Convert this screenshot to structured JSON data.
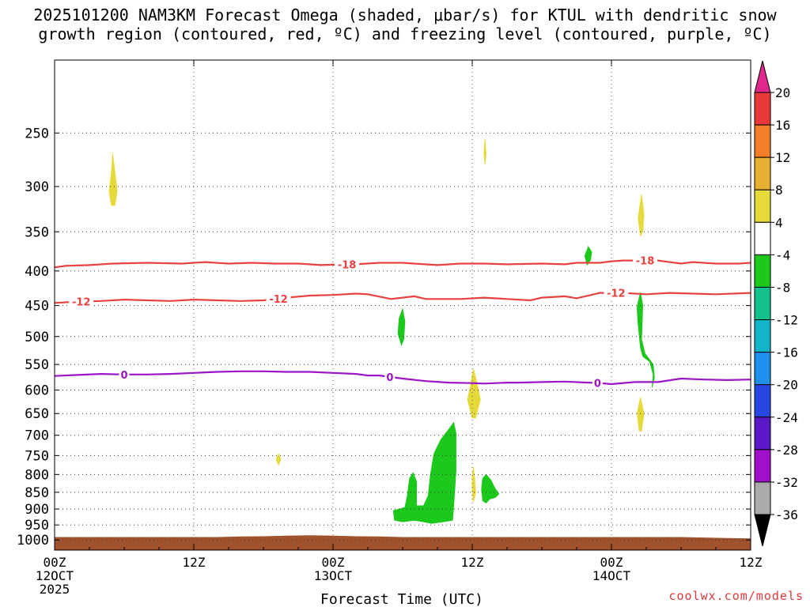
{
  "title_line1": "2025101200 NAM3KM Forecast Omega (shaded, μbar/s) for KTUL with dendritic snow",
  "title_line2": "growth region (contoured, red, ºC) and freezing level (contoured, purple, ºC)",
  "credit": "coolwx.com/models",
  "chart_data": {
    "type": "time-height cross section",
    "xlabel": "Forecast Time (UTC)",
    "x_ticks": [
      {
        "hour": 0,
        "label": "00Z",
        "sub1": "12OCT",
        "sub2": "2025"
      },
      {
        "hour": 12,
        "label": "12Z",
        "sub1": "",
        "sub2": ""
      },
      {
        "hour": 24,
        "label": "00Z",
        "sub1": "13OCT",
        "sub2": ""
      },
      {
        "hour": 36,
        "label": "12Z",
        "sub1": "",
        "sub2": ""
      },
      {
        "hour": 48,
        "label": "00Z",
        "sub1": "14OCT",
        "sub2": ""
      },
      {
        "hour": 60,
        "label": "12Z",
        "sub1": "",
        "sub2": ""
      }
    ],
    "xlim": [
      0,
      60
    ],
    "ylim_hpa": [
      1035,
      195
    ],
    "y_ticks": [
      250,
      300,
      350,
      400,
      450,
      500,
      550,
      600,
      650,
      700,
      750,
      800,
      850,
      900,
      950,
      1000
    ],
    "colorbar": {
      "labels": [
        "20",
        "16",
        "12",
        "8",
        "4",
        "-4",
        "-8",
        "-12",
        "-16",
        "-20",
        "-24",
        "-28",
        "-32",
        "-36"
      ],
      "colors": [
        "#e0288c",
        "#e8383a",
        "#f07f28",
        "#e8b030",
        "#e6da3a",
        "#ffffff",
        "#1cc81c",
        "#14c08c",
        "#14b4c8",
        "#1e90f0",
        "#2846e0",
        "#5a18c8",
        "#a010c8",
        "#aaaaaa",
        "#000000"
      ]
    },
    "contours": [
      {
        "label": "-18",
        "color": "#e8413f",
        "points": [
          [
            0,
            395
          ],
          [
            1,
            393
          ],
          [
            3,
            392
          ],
          [
            5,
            390
          ],
          [
            8,
            389
          ],
          [
            11,
            390
          ],
          [
            13,
            388
          ],
          [
            15,
            390
          ],
          [
            17,
            389
          ],
          [
            19,
            390
          ],
          [
            21,
            390
          ],
          [
            23,
            392
          ],
          [
            25,
            391
          ],
          [
            26,
            391
          ],
          [
            28,
            389
          ],
          [
            30,
            389
          ],
          [
            31,
            390
          ],
          [
            33,
            392
          ],
          [
            35,
            390
          ],
          [
            37,
            390
          ],
          [
            39,
            391
          ],
          [
            42,
            390
          ],
          [
            44,
            391
          ],
          [
            45,
            389
          ],
          [
            47,
            389
          ],
          [
            48,
            387
          ],
          [
            49,
            386
          ],
          [
            50,
            386
          ],
          [
            52,
            386
          ],
          [
            54,
            390
          ],
          [
            55,
            388
          ],
          [
            57,
            390
          ],
          [
            59,
            390
          ],
          [
            60,
            389
          ]
        ],
        "label_hours": [
          25.2,
          50.9
        ]
      },
      {
        "label": "-12",
        "color": "#e8413f",
        "points": [
          [
            0,
            446
          ],
          [
            2,
            444
          ],
          [
            4,
            443
          ],
          [
            6,
            441
          ],
          [
            8,
            442
          ],
          [
            10,
            443
          ],
          [
            12,
            441
          ],
          [
            14,
            442
          ],
          [
            16,
            443
          ],
          [
            18,
            442
          ],
          [
            20,
            438
          ],
          [
            22,
            435
          ],
          [
            24,
            434
          ],
          [
            26,
            432
          ],
          [
            27,
            433
          ],
          [
            29,
            440
          ],
          [
            31,
            436
          ],
          [
            32,
            440
          ],
          [
            35,
            440
          ],
          [
            37,
            438
          ],
          [
            39,
            440
          ],
          [
            41,
            442
          ],
          [
            42,
            438
          ],
          [
            44,
            436
          ],
          [
            45,
            439
          ],
          [
            47,
            431
          ],
          [
            49,
            431
          ],
          [
            51,
            433
          ],
          [
            53,
            431
          ],
          [
            55,
            432
          ],
          [
            57,
            433
          ],
          [
            60,
            431
          ]
        ],
        "label_hours": [
          2.3,
          19.3,
          48.4
        ]
      },
      {
        "label": "0",
        "color": "#9c14c8",
        "points": [
          [
            0,
            572
          ],
          [
            2,
            570
          ],
          [
            4,
            568
          ],
          [
            6,
            569
          ],
          [
            8,
            569
          ],
          [
            10,
            568
          ],
          [
            12,
            566
          ],
          [
            14,
            564
          ],
          [
            16,
            563
          ],
          [
            18,
            563
          ],
          [
            20,
            564
          ],
          [
            22,
            564
          ],
          [
            24,
            566
          ],
          [
            26,
            568
          ],
          [
            27,
            571
          ],
          [
            28,
            571
          ],
          [
            30,
            577
          ],
          [
            32,
            582
          ],
          [
            34,
            585
          ],
          [
            36,
            586
          ],
          [
            37,
            587
          ],
          [
            39,
            585
          ],
          [
            40,
            585
          ],
          [
            42,
            584
          ],
          [
            44,
            583
          ],
          [
            46,
            585
          ],
          [
            47,
            586
          ],
          [
            48,
            588
          ],
          [
            50,
            584
          ],
          [
            52,
            584
          ],
          [
            54,
            577
          ],
          [
            56,
            579
          ],
          [
            58,
            580
          ],
          [
            60,
            579
          ]
        ],
        "label_hours": [
          6.0,
          28.9,
          46.8
        ]
      }
    ],
    "omega_regions": [
      {
        "value": 6,
        "color": "#e6da3a",
        "points": [
          [
            4.9,
            320
          ],
          [
            4.7,
            305
          ],
          [
            4.9,
            285
          ],
          [
            5.0,
            268
          ],
          [
            5.2,
            285
          ],
          [
            5.4,
            305
          ],
          [
            5.2,
            320
          ]
        ]
      },
      {
        "value": 6,
        "color": "#e6da3a",
        "points": [
          [
            37.0,
            268
          ],
          [
            37.1,
            255
          ],
          [
            37.2,
            268
          ],
          [
            37.1,
            278
          ]
        ]
      },
      {
        "value": 6,
        "color": "#e6da3a",
        "points": [
          [
            50.5,
            355
          ],
          [
            50.3,
            335
          ],
          [
            50.5,
            315
          ],
          [
            50.6,
            308
          ],
          [
            50.8,
            330
          ],
          [
            50.7,
            350
          ]
        ]
      },
      {
        "value": 6,
        "color": "#e6da3a",
        "points": [
          [
            36.0,
            660
          ],
          [
            35.6,
            620
          ],
          [
            35.9,
            585
          ],
          [
            36.1,
            558
          ],
          [
            36.4,
            585
          ],
          [
            36.7,
            620
          ],
          [
            36.3,
            660
          ]
        ]
      },
      {
        "value": 6,
        "color": "#e6da3a",
        "points": [
          [
            50.2,
            650
          ],
          [
            50.5,
            615
          ],
          [
            50.8,
            650
          ],
          [
            50.6,
            690
          ],
          [
            50.4,
            690
          ]
        ]
      },
      {
        "value": 6,
        "color": "#e6da3a",
        "points": [
          [
            19.1,
            760
          ],
          [
            19.3,
            745
          ],
          [
            19.5,
            760
          ],
          [
            19.3,
            775
          ]
        ]
      },
      {
        "value": 6,
        "color": "#e6da3a",
        "points": [
          [
            36.0,
            850
          ],
          [
            36.0,
            805
          ],
          [
            36.1,
            780
          ],
          [
            36.2,
            805
          ],
          [
            36.3,
            850
          ],
          [
            36.1,
            880
          ]
        ]
      },
      {
        "value": -6,
        "color": "#1cc81c",
        "points": [
          [
            29.6,
            495
          ],
          [
            29.7,
            470
          ],
          [
            30.0,
            455
          ],
          [
            30.2,
            475
          ],
          [
            30.1,
            505
          ],
          [
            29.9,
            515
          ]
        ]
      },
      {
        "value": -6,
        "color": "#1cc81c",
        "points": [
          [
            45.7,
            380
          ],
          [
            46.0,
            368
          ],
          [
            46.3,
            375
          ],
          [
            46.2,
            385
          ],
          [
            45.9,
            392
          ]
        ]
      },
      {
        "value": -6,
        "color": "#1cc81c",
        "points": [
          [
            51.5,
            595
          ],
          [
            51.6,
            570
          ],
          [
            51.3,
            545
          ],
          [
            50.7,
            535
          ],
          [
            50.5,
            520
          ],
          [
            50.3,
            480
          ],
          [
            50.2,
            452
          ],
          [
            50.5,
            430
          ],
          [
            50.7,
            450
          ],
          [
            50.6,
            505
          ],
          [
            50.9,
            530
          ],
          [
            51.6,
            550
          ],
          [
            51.7,
            575
          ]
        ]
      },
      {
        "value": -6,
        "color": "#1cc81c",
        "points": [
          [
            29.3,
            935
          ],
          [
            29.2,
            905
          ],
          [
            30.2,
            895
          ],
          [
            30.4,
            860
          ],
          [
            30.6,
            810
          ],
          [
            30.9,
            795
          ],
          [
            31.2,
            820
          ],
          [
            31.2,
            890
          ],
          [
            31.8,
            890
          ],
          [
            32.2,
            860
          ],
          [
            32.4,
            800
          ],
          [
            32.7,
            745
          ],
          [
            33.3,
            710
          ],
          [
            34.0,
            685
          ],
          [
            34.4,
            670
          ],
          [
            34.6,
            695
          ],
          [
            34.6,
            790
          ],
          [
            34.4,
            895
          ],
          [
            34.3,
            935
          ],
          [
            33.5,
            940
          ],
          [
            32.5,
            945
          ],
          [
            31.8,
            940
          ],
          [
            31.0,
            935
          ],
          [
            30.0,
            940
          ]
        ]
      },
      {
        "value": -6,
        "color": "#1cc81c",
        "points": [
          [
            36.9,
            875
          ],
          [
            36.8,
            840
          ],
          [
            36.9,
            810
          ],
          [
            37.2,
            800
          ],
          [
            37.6,
            815
          ],
          [
            37.9,
            835
          ],
          [
            38.3,
            855
          ],
          [
            38.0,
            865
          ],
          [
            37.5,
            870
          ],
          [
            37.2,
            882
          ]
        ]
      }
    ],
    "terrain_color": "#a0522d"
  }
}
